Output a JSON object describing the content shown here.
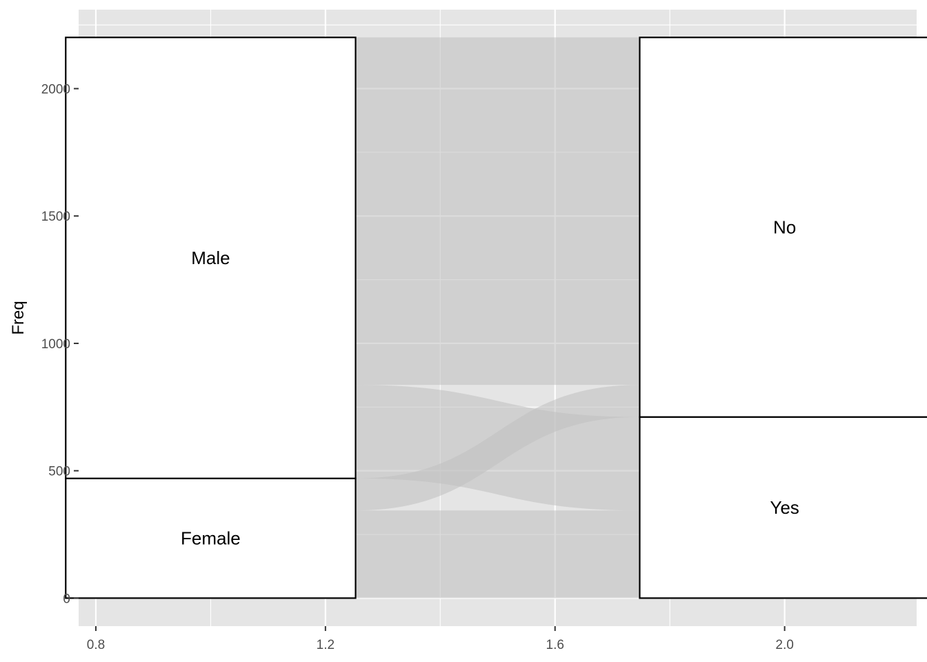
{
  "chart_data": {
    "type": "alluvial",
    "xlabel": "",
    "ylabel": "Freq",
    "xlim": [
      0.77,
      2.23
    ],
    "ylim": [
      -110,
      2310
    ],
    "x_ticks": [
      0.8,
      1.2,
      1.6,
      2.0
    ],
    "x_tick_labels": [
      "0.8",
      "1.2",
      "1.6",
      "2.0"
    ],
    "y_ticks": [
      0,
      500,
      1000,
      1500,
      2000
    ],
    "y_tick_labels": [
      "0",
      "500",
      "1000",
      "1500",
      "2000"
    ],
    "grid": true,
    "axes": [
      {
        "x": 1,
        "strata": [
          {
            "label": "Female",
            "value": 470
          },
          {
            "label": "Male",
            "value": 1731
          }
        ]
      },
      {
        "x": 2,
        "strata": [
          {
            "label": "Yes",
            "value": 711
          },
          {
            "label": "No",
            "value": 1490
          }
        ]
      }
    ],
    "flows": [
      {
        "from": "Female",
        "to": "Yes",
        "value": 344
      },
      {
        "from": "Female",
        "to": "No",
        "value": 126
      },
      {
        "from": "Male",
        "to": "Yes",
        "value": 367
      },
      {
        "from": "Male",
        "to": "No",
        "value": 1364
      }
    ],
    "colors": {
      "panel": "#e5e5e5",
      "grid_major": "#ffffff",
      "flow_fill": "#bfbfbf",
      "stratum_fill": "#ffffff",
      "stratum_stroke": "#000000"
    }
  }
}
